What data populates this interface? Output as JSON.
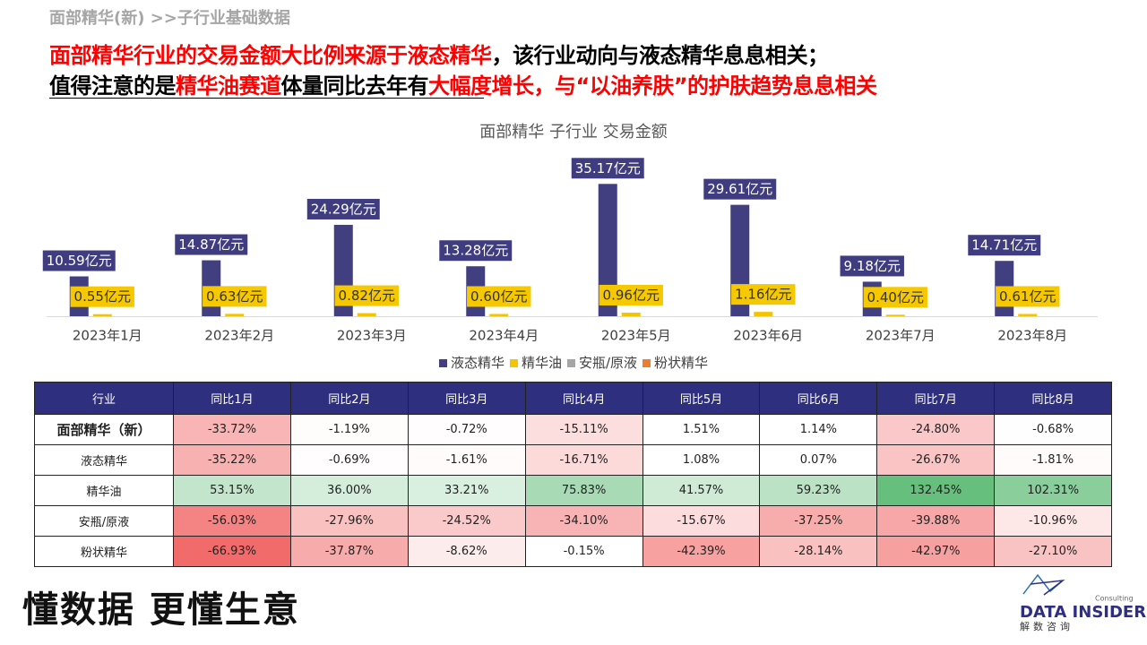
{
  "header": {
    "breadcrumb": "面部精华(新) >>子行业基础数据"
  },
  "headline": [
    [
      {
        "text": "面部精华行业的交易金额大比例来源于液态精华",
        "color": "#ff0000"
      },
      {
        "text": "，该行业动向与液态精华息息相关；",
        "color": "#000000"
      }
    ],
    [
      {
        "text": "值得注意的是",
        "color": "#000000"
      },
      {
        "text": "精华油赛道",
        "color": "#ff0000"
      },
      {
        "text": "体量同比去年有",
        "color": "#000000"
      },
      {
        "text": "大幅度增长，与“以油养肤”的护肤趋势息息相关",
        "color": "#ff0000"
      }
    ]
  ],
  "chart_data": {
    "type": "bar",
    "title": "面部精华 子行业 交易金额",
    "categories": [
      "2023年1月",
      "2023年2月",
      "2023年3月",
      "2023年4月",
      "2023年5月",
      "2023年6月",
      "2023年7月",
      "2023年8月"
    ],
    "ylim": [
      0,
      40
    ],
    "series": [
      {
        "name": "液态精华",
        "color": "#423f80",
        "values": [
          10.59,
          14.87,
          24.29,
          13.28,
          35.17,
          29.61,
          9.18,
          14.71
        ],
        "value_labels": [
          "10.59亿元",
          "14.87亿元",
          "24.29亿元",
          "13.28亿元",
          "35.17亿元",
          "29.61亿元",
          "9.18亿元",
          "14.71亿元"
        ]
      },
      {
        "name": "精华油",
        "color": "#f5c400",
        "values": [
          0.55,
          0.63,
          0.82,
          0.6,
          0.96,
          1.16,
          0.4,
          0.61
        ],
        "value_labels": [
          "0.55亿元",
          "0.63亿元",
          "0.82亿元",
          "0.60亿元",
          "0.96亿元",
          "1.16亿元",
          "0.40亿元",
          "0.61亿元"
        ]
      },
      {
        "name": "安瓶/原液",
        "color": "#a5a5a5",
        "values": [
          0,
          0,
          0,
          0,
          0,
          0,
          0,
          0
        ]
      },
      {
        "name": "粉状精华",
        "color": "#ed7d31",
        "values": [
          0,
          0,
          0,
          0,
          0,
          0,
          0,
          0
        ]
      }
    ]
  },
  "table": {
    "header": [
      "行业",
      "同比1月",
      "同比2月",
      "同比3月",
      "同比4月",
      "同比5月",
      "同比6月",
      "同比7月",
      "同比8月"
    ],
    "rows": [
      [
        "面部精华（新）",
        "-33.72%",
        "-1.19%",
        "-0.72%",
        "-15.11%",
        "1.51%",
        "1.14%",
        "-24.80%",
        "-0.68%"
      ],
      [
        "液态精华",
        "-35.22%",
        "-0.69%",
        "-1.61%",
        "-16.71%",
        "1.08%",
        "0.07%",
        "-26.67%",
        "-1.81%"
      ],
      [
        "精华油",
        "53.15%",
        "36.00%",
        "33.21%",
        "75.83%",
        "41.57%",
        "59.23%",
        "132.45%",
        "102.31%"
      ],
      [
        "安瓶/原液",
        "-56.03%",
        "-27.96%",
        "-24.52%",
        "-34.10%",
        "-15.67%",
        "-37.25%",
        "-39.88%",
        "-10.96%"
      ],
      [
        "粉状精华",
        "-66.93%",
        "-37.87%",
        "-8.62%",
        "-0.15%",
        "-42.39%",
        "-28.14%",
        "-42.97%",
        "-27.10%"
      ]
    ]
  },
  "footer": {
    "slogan": "懂数据 更懂生意",
    "logo": "DATA INSIDER",
    "logo_sub": "Consulting",
    "logo_cn": "解数咨询"
  }
}
